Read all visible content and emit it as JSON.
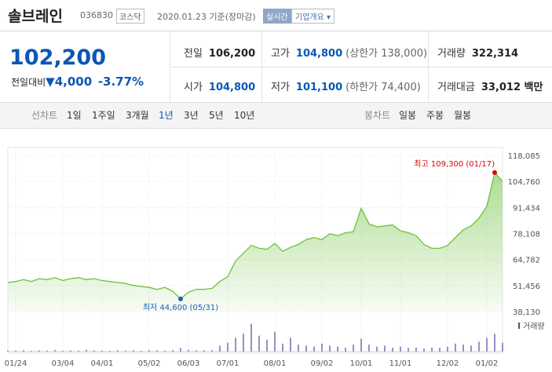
{
  "header": {
    "name": "솔브레인",
    "code": "036830",
    "market": "코스닥",
    "date": "2020.01.23 기준(장마감)",
    "realtime": "실시간",
    "overview": "기업개요 ▾"
  },
  "quote": {
    "price": "102,200",
    "change_label": "전일대비",
    "change": "4,000",
    "change_pct": "-3.77%"
  },
  "summary": {
    "rows": [
      [
        {
          "label": "전일",
          "value": "106,200"
        },
        {
          "label": "고가",
          "value": "104,800",
          "extra": "(상한가 138,000)"
        },
        {
          "label": "거래량",
          "value": "322,314"
        }
      ],
      [
        {
          "label": "시가",
          "value": "104,800"
        },
        {
          "label": "저가",
          "value": "101,100",
          "extra": "(하한가 74,400)"
        },
        {
          "label": "거래대금",
          "value": "33,012 백만"
        }
      ]
    ]
  },
  "tabs": {
    "line_label": "선차트",
    "line": [
      "1일",
      "1주일",
      "3개월",
      "1년",
      "3년",
      "5년",
      "10년"
    ],
    "selected": 3,
    "candle_label": "봉차트",
    "candle": [
      "일봉",
      "주봉",
      "월봉"
    ]
  },
  "chart_data": {
    "type": "area",
    "color": "#6cc13c",
    "categories": [
      null,
      "01/24",
      null,
      null,
      null,
      null,
      null,
      "03/04",
      null,
      null,
      null,
      null,
      "04/01",
      null,
      null,
      null,
      null,
      null,
      "05/02",
      null,
      null,
      null,
      null,
      "06/03",
      null,
      null,
      null,
      null,
      "07/01",
      null,
      null,
      null,
      null,
      null,
      "08/01",
      null,
      null,
      null,
      null,
      null,
      "09/02",
      null,
      null,
      null,
      null,
      "10/01",
      null,
      null,
      null,
      null,
      "11/01",
      null,
      null,
      null,
      null,
      null,
      "12/02",
      null,
      null,
      null,
      null,
      "01/02",
      null,
      null
    ],
    "values": [
      53000,
      53500,
      54500,
      53500,
      55000,
      54500,
      55500,
      54000,
      55000,
      55500,
      54500,
      55000,
      54000,
      53500,
      53000,
      52500,
      51500,
      51000,
      50500,
      49500,
      50500,
      48500,
      44600,
      48000,
      49500,
      49500,
      50000,
      53500,
      56000,
      64000,
      68000,
      72000,
      70500,
      70000,
      73000,
      69000,
      71000,
      72500,
      75000,
      76000,
      75000,
      78000,
      77000,
      78500,
      79000,
      91000,
      83000,
      81500,
      82000,
      82500,
      79500,
      78500,
      77000,
      72500,
      70500,
      70500,
      72000,
      76000,
      80000,
      82000,
      86000,
      92000,
      109300,
      104800
    ],
    "ylim": [
      38130,
      118085
    ],
    "yticks": [
      {
        "value": 118085,
        "label": "118,085"
      },
      {
        "value": 104760,
        "label": "104,760"
      },
      {
        "value": 91434,
        "label": "91,434"
      },
      {
        "value": 78108,
        "label": "78,108"
      },
      {
        "value": 64782,
        "label": "64,782"
      },
      {
        "value": 51456,
        "label": "51,456"
      },
      {
        "value": 38130,
        "label": "38,130"
      }
    ],
    "grid": true,
    "annotations": [
      {
        "index": 62,
        "text": "최고 109,300 (01/17)",
        "color": "#e00000"
      },
      {
        "index": 22,
        "text": "최저 44,600 (05/31)",
        "color": "#1a5fb4"
      }
    ],
    "volume": {
      "label": "거래량",
      "color": "#9a8fc7",
      "ylim": [
        0,
        1500000
      ],
      "values": [
        60000,
        50000,
        70000,
        40000,
        60000,
        50000,
        80000,
        40000,
        60000,
        50000,
        90000,
        60000,
        50000,
        40000,
        70000,
        50000,
        60000,
        40000,
        80000,
        60000,
        50000,
        70000,
        180000,
        90000,
        60000,
        70000,
        80000,
        300000,
        450000,
        700000,
        900000,
        1400000,
        800000,
        600000,
        1000000,
        400000,
        700000,
        350000,
        300000,
        250000,
        400000,
        300000,
        250000,
        200000,
        350000,
        650000,
        350000,
        250000,
        300000,
        200000,
        250000,
        180000,
        200000,
        150000,
        200000,
        180000,
        250000,
        400000,
        350000,
        300000,
        500000,
        700000,
        900000,
        450000
      ]
    }
  }
}
